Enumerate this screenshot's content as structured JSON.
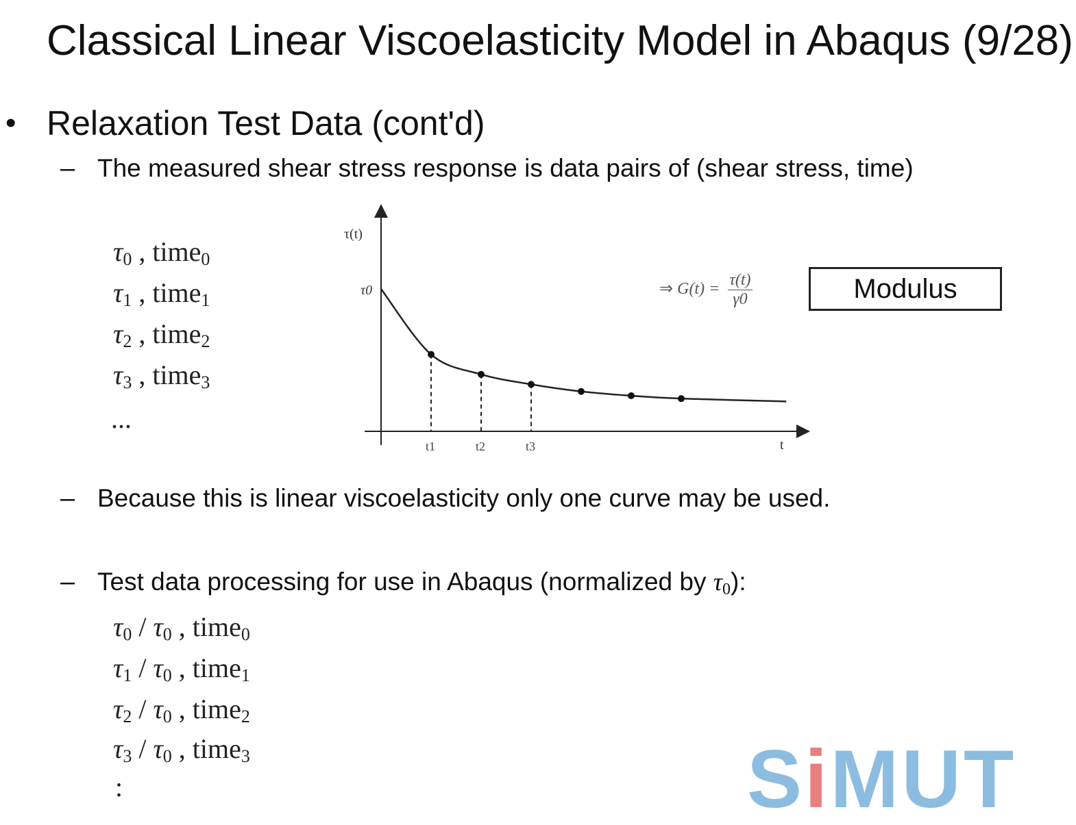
{
  "title": "Classical Linear Viscoelasticity Model in Abaqus (9/28)",
  "bullet": "Relaxation Test Data (cont'd)",
  "sub_points": {
    "measured": "The measured shear stress response is data pairs of (shear stress, time)",
    "linear": "Because this is linear viscoelasticity only one curve may be used.",
    "processing_prefix": "Test data processing for use in Abaqus (normalized by ",
    "processing_suffix": "):"
  },
  "raw_pairs": [
    {
      "tau": "τ",
      "sub": "0",
      "time": "time",
      "tsub": "0"
    },
    {
      "tau": "τ",
      "sub": "1",
      "time": "time",
      "tsub": "1"
    },
    {
      "tau": "τ",
      "sub": "2",
      "time": "time",
      "tsub": "2"
    },
    {
      "tau": "τ",
      "sub": "3",
      "time": "time",
      "tsub": "3"
    }
  ],
  "raw_ellipsis": "...",
  "normalized_ellipsis": ":",
  "modulus_label": "Modulus",
  "formula": {
    "arrow": "⇒",
    "lhs": "G(t) =",
    "num": "τ(t)",
    "den": "γ0"
  },
  "chart_data": {
    "type": "line",
    "ylabel": "τ(t)",
    "xlabel": "t",
    "y_tick": "τ0",
    "x_ticks": [
      "t1",
      "t2",
      "t3"
    ],
    "curve": [
      {
        "x": 0,
        "y": 1.0
      },
      {
        "x": 1,
        "y": 0.54
      },
      {
        "x": 2,
        "y": 0.4
      },
      {
        "x": 3,
        "y": 0.33
      },
      {
        "x": 4,
        "y": 0.28
      },
      {
        "x": 5,
        "y": 0.25
      },
      {
        "x": 6,
        "y": 0.23
      },
      {
        "x": 8.1,
        "y": 0.21
      }
    ],
    "points": [
      {
        "x": 1,
        "y": 0.54
      },
      {
        "x": 2,
        "y": 0.4
      },
      {
        "x": 3,
        "y": 0.33
      },
      {
        "x": 4,
        "y": 0.28
      },
      {
        "x": 5,
        "y": 0.25
      },
      {
        "x": 6,
        "y": 0.23
      }
    ]
  },
  "logo_text": {
    "pre": "S",
    "accent": "i",
    "post": "MUT"
  }
}
